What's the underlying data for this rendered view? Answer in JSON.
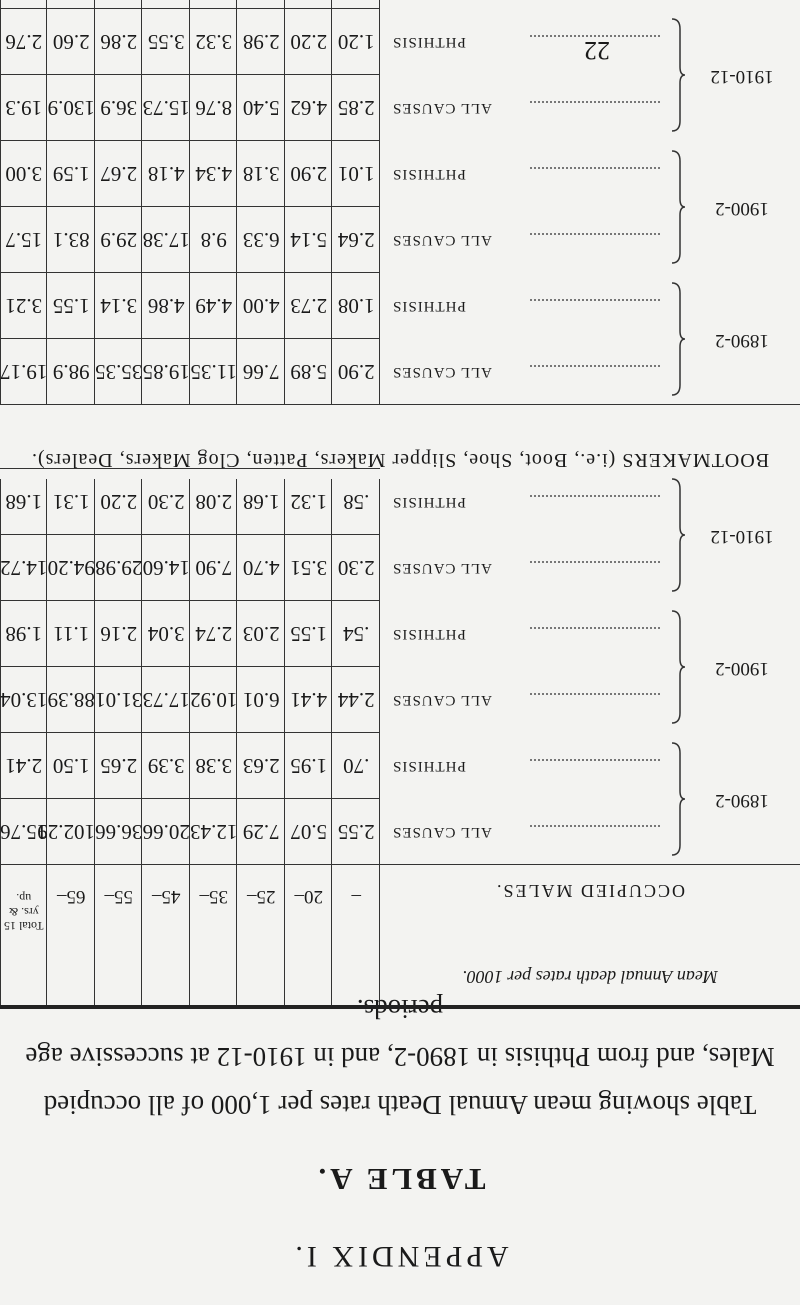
{
  "appendix": "APPENDIX I.",
  "table_title": "TABLE A.",
  "caption": "Table showing mean Annual Death rates per 1,000 of all occupied Males, and from Phthisis in 1890-2, and in 1910-12 at successive age periods.",
  "page_number": "22",
  "table": {
    "stub_header": "Mean Annual death rates per 1000.",
    "columns": [
      "–",
      "20–",
      "25–",
      "35–",
      "45–",
      "55–",
      "65–",
      "Total 15 yrs. & up."
    ],
    "sections": [
      {
        "label": "OCCUPIED MALES.",
        "groups": [
          {
            "period": "1890-2",
            "rows": [
              {
                "cause": "ALL CAUSES",
                "values": [
                  "2.55",
                  "5.07",
                  "7.29",
                  "12.43",
                  "20.66",
                  "36.66",
                  "102.29",
                  "15.76"
                ]
              },
              {
                "cause": "PHTHISIS",
                "values": [
                  ".70",
                  "1.95",
                  "2.63",
                  "3.38",
                  "3.39",
                  "2.65",
                  "1.50",
                  "2.41"
                ]
              }
            ]
          },
          {
            "period": "1900-2",
            "rows": [
              {
                "cause": "ALL CAUSES",
                "values": [
                  "2.44",
                  "4.41",
                  "6.01",
                  "10.92",
                  "17.73",
                  "31.01",
                  "88.39",
                  "13.04"
                ]
              },
              {
                "cause": "PHTHISIS",
                "values": [
                  ".54",
                  "1.55",
                  "2.03",
                  "2.74",
                  "3.04",
                  "2.16",
                  "1.11",
                  "1.98"
                ]
              }
            ]
          },
          {
            "period": "1910-12",
            "rows": [
              {
                "cause": "ALL CAUSES",
                "values": [
                  "2.30",
                  "3.51",
                  "4.70",
                  "7.90",
                  "14.60",
                  "29.98",
                  "94.20",
                  "14.72"
                ]
              },
              {
                "cause": "PHTHISIS",
                "values": [
                  ".58",
                  "1.32",
                  "1.68",
                  "2.08",
                  "2.30",
                  "2.20",
                  "1.31",
                  "1.68"
                ]
              }
            ]
          }
        ]
      },
      {
        "label": "BOOTMAKERS (i.e., Boot, Shoe, Slipper Makers, Patten, Clog Makers, Dealers).",
        "groups": [
          {
            "period": "1890-2",
            "rows": [
              {
                "cause": "ALL CAUSES",
                "values": [
                  "2.90",
                  "5.89",
                  "7.66",
                  "11.35",
                  "19.85",
                  "35.35",
                  "98.9",
                  "19.17"
                ]
              },
              {
                "cause": "PHTHISIS",
                "values": [
                  "1.08",
                  "2.73",
                  "4.00",
                  "4.49",
                  "4.86",
                  "3.14",
                  "1.55",
                  "3.21"
                ]
              }
            ]
          },
          {
            "period": "1900-2",
            "rows": [
              {
                "cause": "ALL CAUSES",
                "values": [
                  "2.64",
                  "5.14",
                  "6.33",
                  "9.8",
                  "17.38",
                  "29.9",
                  "83.1",
                  "15.7"
                ]
              },
              {
                "cause": "PHTHISIS",
                "values": [
                  "1.01",
                  "2.90",
                  "3.18",
                  "4.34",
                  "4.18",
                  "2.67",
                  "1.59",
                  "3.00"
                ]
              }
            ]
          },
          {
            "period": "1910-12",
            "rows": [
              {
                "cause": "ALL CAUSES",
                "values": [
                  "2.85",
                  "4.62",
                  "5.40",
                  "8.76",
                  "15.73",
                  "36.9",
                  "130.9",
                  "19.3"
                ]
              },
              {
                "cause": "PHTHISIS",
                "values": [
                  "1.20",
                  "2.20",
                  "2.98",
                  "3.32",
                  "3.55",
                  "2.86",
                  "2.60",
                  "2.76"
                ]
              }
            ]
          }
        ]
      }
    ]
  }
}
